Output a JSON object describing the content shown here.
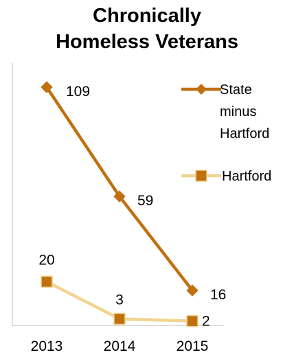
{
  "chart_data": {
    "type": "line",
    "title_lines": [
      "Chronically",
      "Homeless Veterans"
    ],
    "xlabel": "",
    "ylabel": "",
    "categories": [
      "2013",
      "2014",
      "2015"
    ],
    "ylim": [
      0,
      120
    ],
    "grid": false,
    "legend_position": "right",
    "series": [
      {
        "name": "State minus Hartford",
        "name_lines": [
          "State",
          "minus",
          "Hartford"
        ],
        "values": [
          109,
          59,
          16
        ],
        "color": "#c0700f",
        "marker": "diamond"
      },
      {
        "name": "Hartford",
        "name_lines": [
          "Hartford"
        ],
        "values": [
          20,
          3,
          2
        ],
        "color": "#f0d490",
        "marker_color": "#c0700f",
        "marker": "square"
      }
    ]
  }
}
